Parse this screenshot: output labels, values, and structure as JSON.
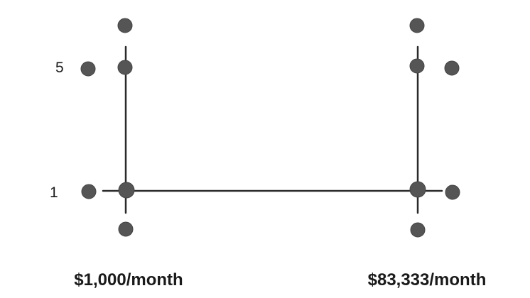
{
  "y_labels": {
    "upper": "5",
    "lower": "1"
  },
  "captions": {
    "left": "$1,000/month",
    "right": "$83,333/month"
  },
  "colors": {
    "line": "#2a2a2a",
    "dot": "#555555"
  }
}
